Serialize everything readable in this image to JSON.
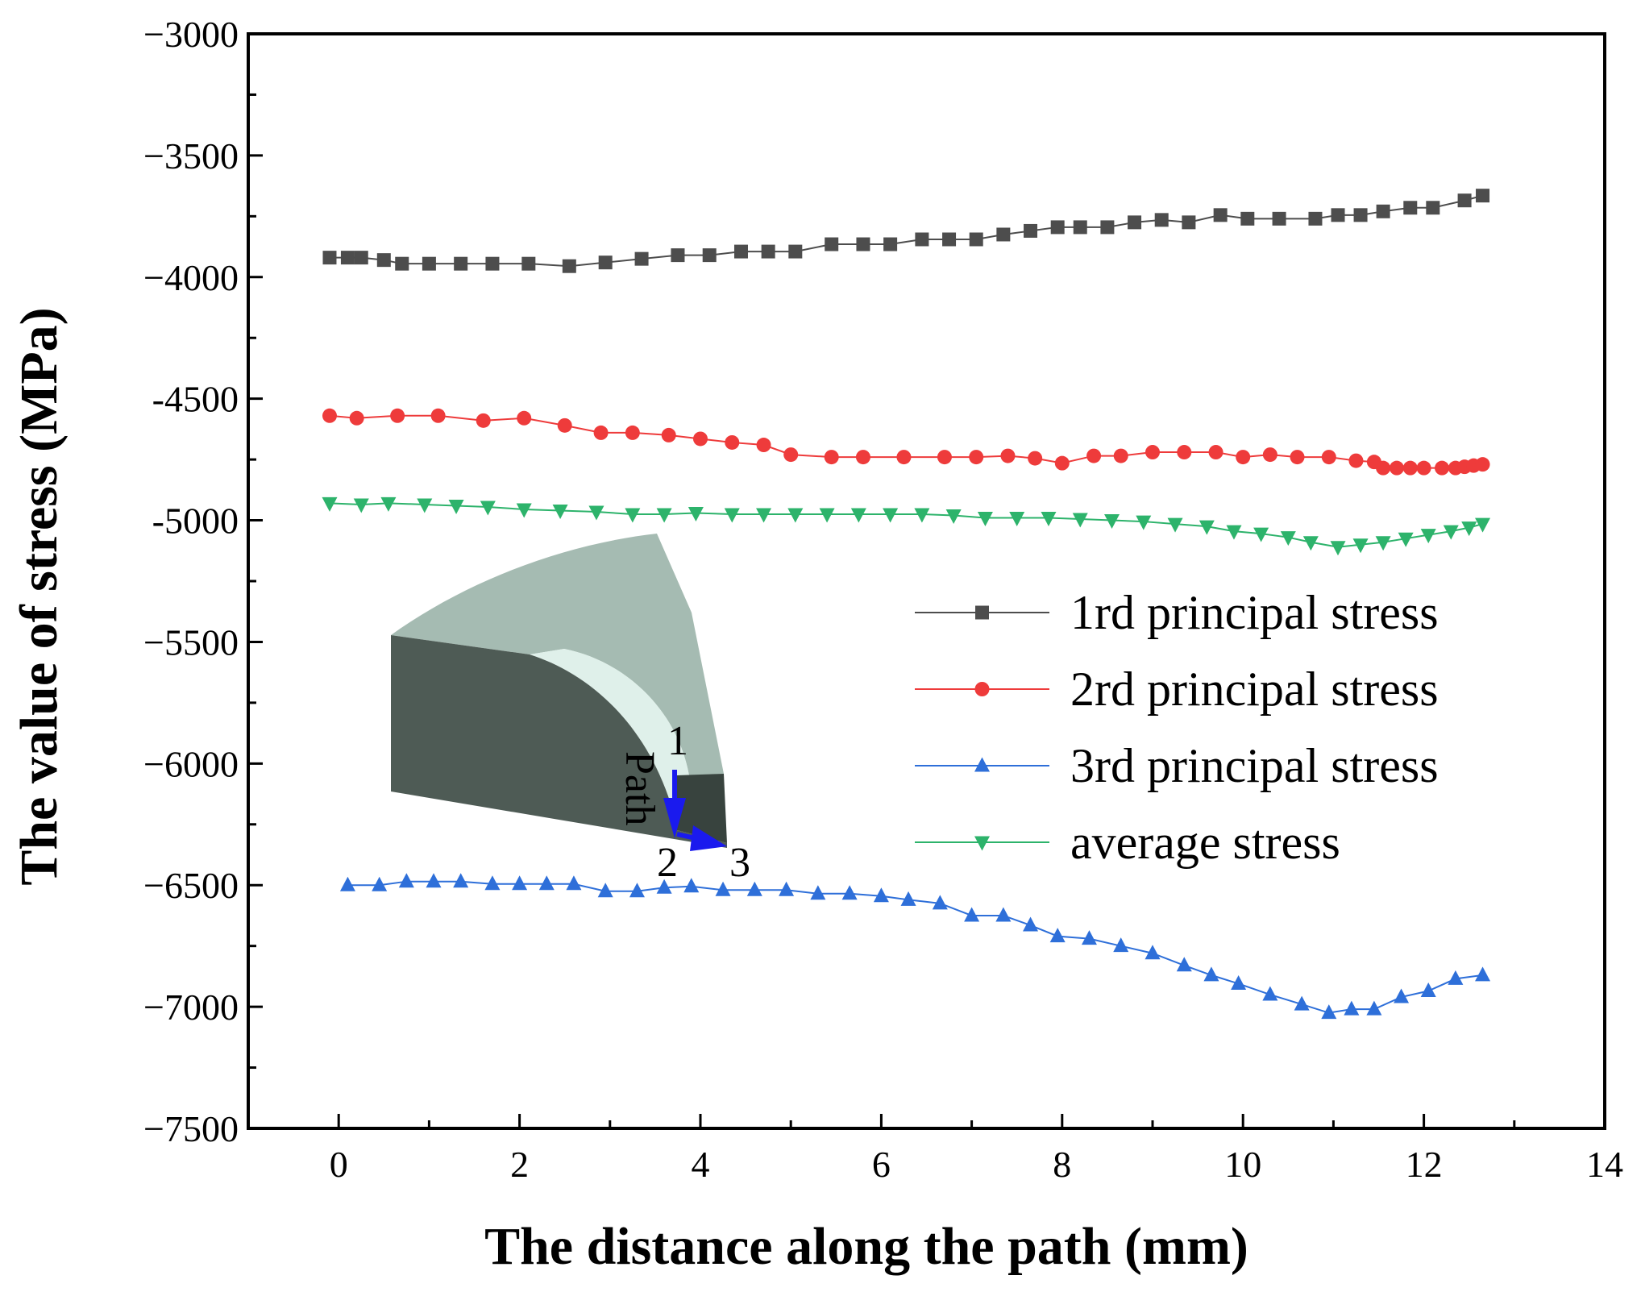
{
  "chart_data": {
    "type": "line",
    "title": "",
    "xlabel": "The distance along the path (mm)",
    "ylabel": "The value of stress (MPa)",
    "xlim": [
      -1,
      14
    ],
    "ylim": [
      -7500,
      -3000
    ],
    "xticks": [
      0,
      2,
      4,
      6,
      8,
      10,
      12,
      14
    ],
    "yticks": [
      -3000,
      -3500,
      -4000,
      -4500,
      -5000,
      -5500,
      -6000,
      -6500,
      -7000,
      -7500
    ],
    "xtick_labels": [
      "0",
      "2",
      "4",
      "6",
      "8",
      "10",
      "12",
      "14"
    ],
    "ytick_labels": [
      "−3000",
      "−3500",
      "−4000",
      "-4500",
      "-5000",
      "−5500",
      "−6000",
      "−6500",
      "−7000",
      "−7500"
    ],
    "legend_position": "center-right",
    "series": [
      {
        "name": "1rd principal stress",
        "color": "#4d4d4d",
        "marker": "square",
        "x": [
          -0.1,
          0.1,
          0.25,
          0.5,
          0.7,
          1.0,
          1.35,
          1.7,
          2.1,
          2.55,
          2.95,
          3.35,
          3.75,
          4.1,
          4.45,
          4.75,
          5.05,
          5.45,
          5.8,
          6.1,
          6.45,
          6.75,
          7.05,
          7.35,
          7.65,
          7.95,
          8.2,
          8.5,
          8.8,
          9.1,
          9.4,
          9.75,
          10.05,
          10.4,
          10.8,
          11.05,
          11.3,
          11.55,
          11.85,
          12.1,
          12.45,
          12.65
        ],
        "y": [
          -3920,
          -3920,
          -3920,
          -3930,
          -3945,
          -3945,
          -3945,
          -3945,
          -3945,
          -3955,
          -3940,
          -3925,
          -3910,
          -3910,
          -3895,
          -3895,
          -3895,
          -3865,
          -3865,
          -3865,
          -3845,
          -3845,
          -3845,
          -3825,
          -3810,
          -3795,
          -3795,
          -3795,
          -3775,
          -3765,
          -3775,
          -3745,
          -3760,
          -3760,
          -3760,
          -3745,
          -3745,
          -3730,
          -3715,
          -3715,
          -3685,
          -3665
        ]
      },
      {
        "name": "2rd principal stress",
        "color": "#ee3b3b",
        "marker": "circle",
        "x": [
          -0.1,
          0.2,
          0.65,
          1.1,
          1.6,
          2.05,
          2.5,
          2.9,
          3.25,
          3.65,
          4.0,
          4.35,
          4.7,
          5.0,
          5.45,
          5.8,
          6.25,
          6.7,
          7.05,
          7.4,
          7.7,
          8.0,
          8.35,
          8.65,
          9.0,
          9.35,
          9.7,
          10.0,
          10.3,
          10.6,
          10.95,
          11.25,
          11.45,
          11.55,
          11.7,
          11.85,
          12.0,
          12.2,
          12.35,
          12.45,
          12.55,
          12.65
        ],
        "y": [
          -4570,
          -4580,
          -4570,
          -4570,
          -4590,
          -4580,
          -4610,
          -4640,
          -4640,
          -4650,
          -4665,
          -4680,
          -4690,
          -4730,
          -4740,
          -4740,
          -4740,
          -4740,
          -4740,
          -4735,
          -4745,
          -4765,
          -4735,
          -4735,
          -4720,
          -4720,
          -4720,
          -4740,
          -4730,
          -4740,
          -4740,
          -4755,
          -4760,
          -4785,
          -4785,
          -4785,
          -4785,
          -4785,
          -4785,
          -4780,
          -4775,
          -4770
        ]
      },
      {
        "name": "3rd principal stress",
        "color": "#2e6fd9",
        "marker": "triangle-up",
        "x": [
          0.1,
          0.45,
          0.75,
          1.05,
          1.35,
          1.7,
          2.0,
          2.3,
          2.6,
          2.95,
          3.3,
          3.6,
          3.9,
          4.25,
          4.6,
          4.95,
          5.3,
          5.65,
          6.0,
          6.3,
          6.65,
          7.0,
          7.35,
          7.65,
          7.95,
          8.3,
          8.65,
          9.0,
          9.35,
          9.65,
          9.95,
          10.3,
          10.65,
          10.95,
          11.2,
          11.45,
          11.75,
          12.05,
          12.35,
          12.65
        ],
        "y": [
          -6500,
          -6500,
          -6485,
          -6485,
          -6485,
          -6495,
          -6495,
          -6495,
          -6495,
          -6525,
          -6525,
          -6510,
          -6505,
          -6520,
          -6520,
          -6520,
          -6535,
          -6535,
          -6545,
          -6560,
          -6575,
          -6625,
          -6625,
          -6665,
          -6710,
          -6720,
          -6750,
          -6780,
          -6830,
          -6870,
          -6905,
          -6950,
          -6990,
          -7025,
          -7010,
          -7010,
          -6960,
          -6935,
          -6885,
          -6870
        ]
      },
      {
        "name": "average stress",
        "color": "#2db36b",
        "marker": "triangle-down",
        "x": [
          -0.1,
          0.25,
          0.55,
          0.95,
          1.3,
          1.65,
          2.05,
          2.45,
          2.85,
          3.25,
          3.6,
          3.95,
          4.35,
          4.7,
          5.05,
          5.4,
          5.75,
          6.1,
          6.45,
          6.8,
          7.15,
          7.5,
          7.85,
          8.2,
          8.55,
          8.9,
          9.25,
          9.6,
          9.9,
          10.2,
          10.5,
          10.75,
          11.05,
          11.3,
          11.55,
          11.8,
          12.05,
          12.3,
          12.5,
          12.65
        ],
        "y": [
          -4930,
          -4935,
          -4930,
          -4935,
          -4940,
          -4945,
          -4955,
          -4960,
          -4965,
          -4975,
          -4975,
          -4970,
          -4975,
          -4975,
          -4975,
          -4975,
          -4975,
          -4975,
          -4975,
          -4980,
          -4990,
          -4990,
          -4990,
          -4995,
          -5000,
          -5005,
          -5015,
          -5025,
          -5045,
          -5055,
          -5070,
          -5090,
          -5110,
          -5100,
          -5090,
          -5075,
          -5060,
          -5045,
          -5030,
          -5015
        ]
      }
    ]
  },
  "inset": {
    "labels": [
      "1",
      "2",
      "3"
    ],
    "path_label": "Path",
    "colors": {
      "top_face": "#a0b6ad",
      "front_face": "#4e5b55",
      "arrow": "#1a1aee"
    }
  }
}
